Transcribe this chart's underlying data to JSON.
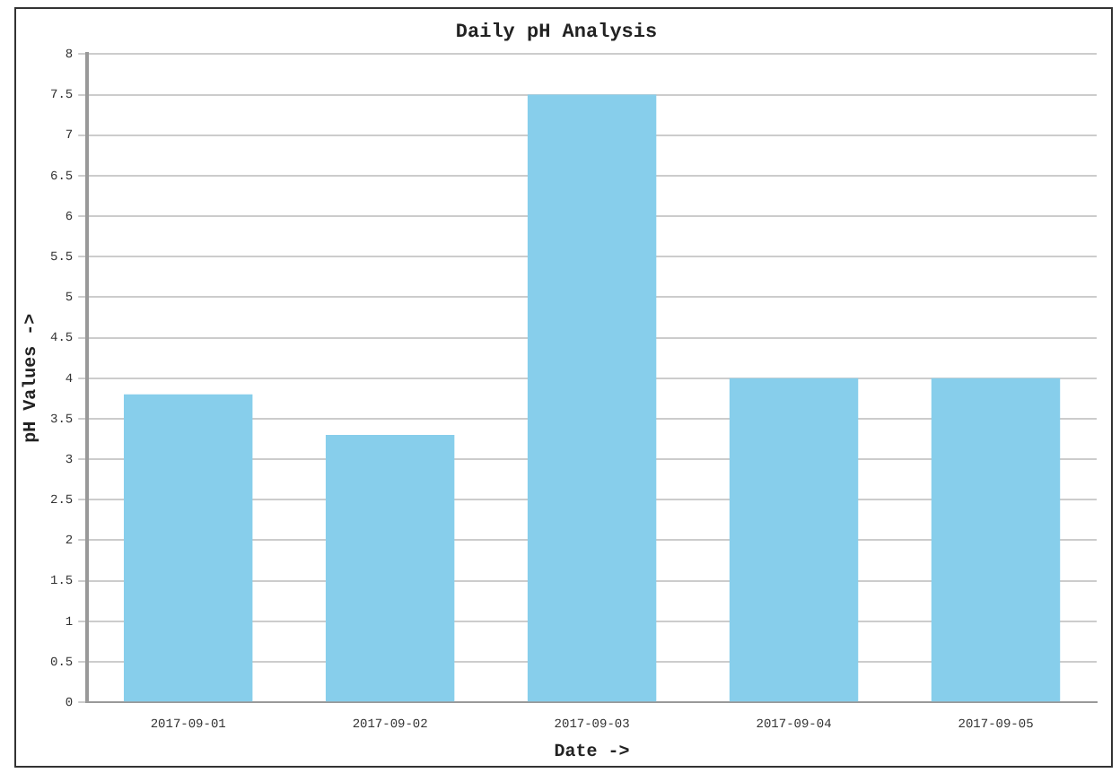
{
  "chart_data": {
    "type": "bar",
    "title": "Daily pH Analysis",
    "xlabel": "Date ->",
    "ylabel": "pH Values ->",
    "categories": [
      "2017-09-01",
      "2017-09-02",
      "2017-09-03",
      "2017-09-04",
      "2017-09-05"
    ],
    "values": [
      3.8,
      3.3,
      7.5,
      4,
      4
    ],
    "color": "#87ceeb",
    "ylim": [
      0,
      8
    ],
    "yticks": [
      0,
      0.5,
      1,
      1.5,
      2,
      2.5,
      3,
      3.5,
      4,
      4.5,
      5,
      5.5,
      6,
      6.5,
      7,
      7.5,
      8
    ],
    "grid": "y"
  }
}
